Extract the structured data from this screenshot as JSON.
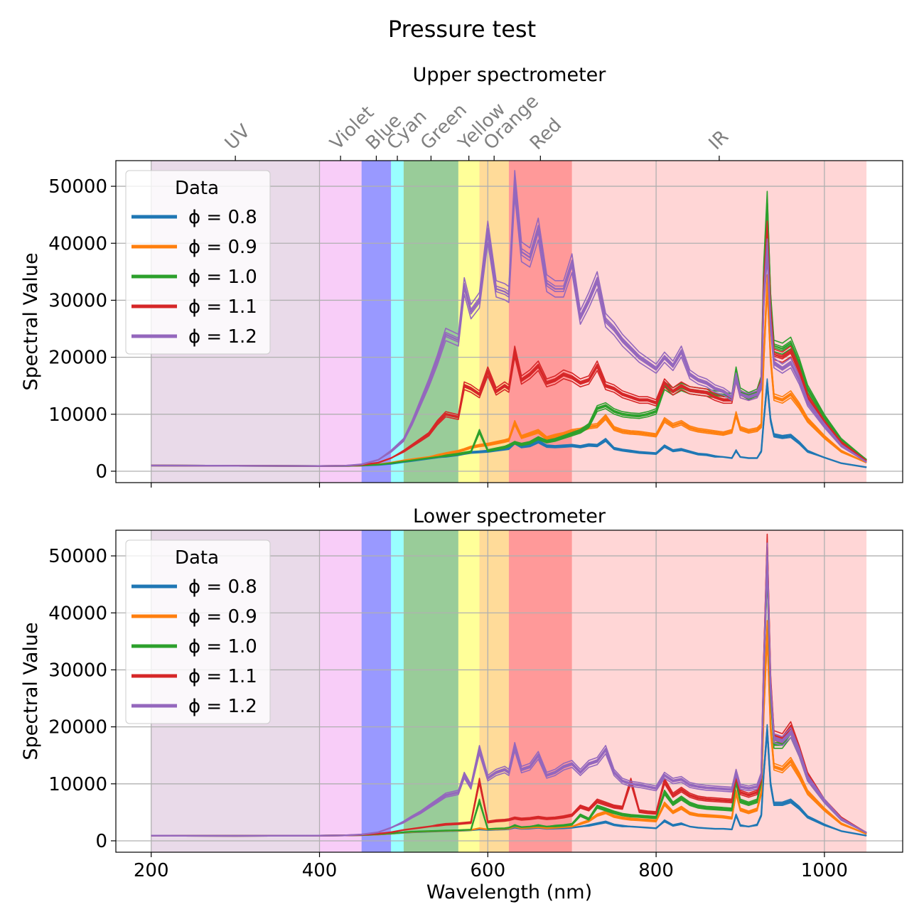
{
  "title": "Pressure test",
  "colors": {
    "series": [
      "#1f77b4",
      "#ff7f0e",
      "#2ca02c",
      "#d62728",
      "#9467bd"
    ],
    "grid": "#b0b0b0",
    "band_label": "#808080"
  },
  "bands": [
    {
      "name": "UV",
      "range": [
        200,
        400
      ],
      "color": "#c8a2c8"
    },
    {
      "name": "Violet",
      "range": [
        400,
        450
      ],
      "color": "#ee82ee"
    },
    {
      "name": "Blue",
      "range": [
        450,
        485
      ],
      "color": "#0000ff"
    },
    {
      "name": "Cyan",
      "range": [
        485,
        500
      ],
      "color": "#00ffff"
    },
    {
      "name": "Green",
      "range": [
        500,
        565
      ],
      "color": "#008000"
    },
    {
      "name": "Yellow",
      "range": [
        565,
        590
      ],
      "color": "#ffff00"
    },
    {
      "name": "Orange",
      "range": [
        590,
        625
      ],
      "color": "#ffa500"
    },
    {
      "name": "Red",
      "range": [
        625,
        700
      ],
      "color": "#ff0000"
    },
    {
      "name": "IR",
      "range": [
        700,
        1050
      ],
      "color": "#ff9999"
    }
  ],
  "chart_data": [
    {
      "type": "line",
      "title": "Upper spectrometer",
      "xlabel": "",
      "ylabel": "Spectral Value",
      "xlim": [
        158,
        1093
      ],
      "ylim": [
        -2000,
        54500
      ],
      "xticks": [
        200,
        400,
        600,
        800,
        1000
      ],
      "yticks": [
        0,
        10000,
        20000,
        30000,
        40000,
        50000
      ],
      "grid": true,
      "legend": {
        "title": "Data",
        "position": "upper-left"
      },
      "x": [
        200,
        300,
        400,
        430,
        450,
        470,
        485,
        500,
        510,
        520,
        530,
        540,
        550,
        565,
        572,
        580,
        590,
        600,
        610,
        620,
        625,
        632,
        640,
        650,
        660,
        670,
        680,
        690,
        700,
        710,
        720,
        730,
        740,
        750,
        760,
        770,
        780,
        790,
        800,
        810,
        820,
        830,
        840,
        850,
        860,
        870,
        880,
        890,
        895,
        900,
        910,
        920,
        925,
        928,
        932,
        936,
        940,
        950,
        960,
        970,
        980,
        1000,
        1020,
        1050
      ],
      "series": [
        {
          "name": "ϕ = 0.8",
          "values": [
            1000,
            950,
            900,
            920,
            980,
            1100,
            1300,
            1600,
            1800,
            2000,
            2200,
            2400,
            2600,
            2900,
            3100,
            3300,
            3400,
            3500,
            3700,
            3900,
            4000,
            5000,
            4300,
            4500,
            5200,
            4400,
            4300,
            4400,
            4500,
            4300,
            4600,
            4500,
            5500,
            4000,
            3700,
            3500,
            3300,
            3200,
            3100,
            4400,
            3600,
            3800,
            3400,
            3000,
            2900,
            2600,
            2500,
            2300,
            3600,
            2500,
            2300,
            2300,
            3500,
            9000,
            15500,
            9000,
            6300,
            6000,
            6200,
            5000,
            3500,
            2400,
            1400,
            700
          ]
        },
        {
          "name": "ϕ = 0.9",
          "values": [
            1000,
            950,
            900,
            930,
            1000,
            1200,
            1500,
            1900,
            2100,
            2300,
            2500,
            2800,
            3100,
            3500,
            3800,
            4200,
            4500,
            4700,
            5000,
            5300,
            5500,
            8500,
            6000,
            6500,
            7000,
            5800,
            6200,
            6500,
            7000,
            7200,
            7800,
            8000,
            9500,
            7500,
            7000,
            6800,
            6700,
            6500,
            6300,
            9000,
            8000,
            8500,
            7600,
            7200,
            7000,
            6800,
            6600,
            7000,
            10000,
            7500,
            7000,
            7300,
            8000,
            20000,
            33000,
            20000,
            13000,
            12500,
            13500,
            11500,
            9000,
            6000,
            3500,
            1500
          ]
        },
        {
          "name": "ϕ = 1.0",
          "values": [
            1000,
            950,
            900,
            930,
            1000,
            1150,
            1400,
            1700,
            1900,
            2100,
            2300,
            2500,
            2700,
            3000,
            3200,
            3400,
            7000,
            3600,
            3900,
            4200,
            4500,
            5000,
            4700,
            5000,
            5800,
            5200,
            5500,
            6000,
            6500,
            7000,
            8000,
            11000,
            11500,
            10500,
            10000,
            9800,
            9700,
            10000,
            10500,
            15000,
            14000,
            14800,
            14200,
            14000,
            13800,
            13500,
            13300,
            13000,
            17500,
            14000,
            13200,
            13800,
            16000,
            35000,
            47000,
            30000,
            22000,
            21500,
            22500,
            19000,
            14500,
            9500,
            5500,
            2000
          ]
        },
        {
          "name": "ϕ = 1.1",
          "values": [
            1000,
            950,
            900,
            950,
            1100,
            1500,
            2300,
            3500,
            4500,
            5500,
            6500,
            8500,
            10000,
            9500,
            15000,
            14500,
            13500,
            17500,
            14000,
            15000,
            14500,
            21000,
            16000,
            17000,
            18500,
            15500,
            16000,
            17000,
            16500,
            15500,
            16000,
            18500,
            15000,
            14500,
            13500,
            13000,
            12500,
            12500,
            12000,
            15500,
            14000,
            15000,
            14200,
            14000,
            13800,
            13000,
            12500,
            12500,
            16500,
            13500,
            13000,
            13500,
            15500,
            32000,
            42000,
            28000,
            20500,
            20000,
            21000,
            17500,
            13000,
            8500,
            5000,
            1800
          ]
        },
        {
          "name": "ϕ = 1.2",
          "values": [
            1000,
            950,
            900,
            950,
            1200,
            2000,
            3500,
            5500,
            8500,
            12000,
            15500,
            19500,
            24000,
            23000,
            32500,
            28000,
            30000,
            42000,
            32000,
            31500,
            31000,
            50500,
            38500,
            37500,
            42500,
            33000,
            32000,
            32000,
            36500,
            27000,
            30000,
            33500,
            26500,
            25000,
            23000,
            21500,
            20000,
            19000,
            18000,
            20000,
            18500,
            21000,
            17000,
            16000,
            15500,
            14500,
            14000,
            13000,
            16500,
            13500,
            13000,
            13500,
            15000,
            30000,
            39000,
            26000,
            19000,
            18000,
            19000,
            16000,
            12000,
            8000,
            4500,
            1600
          ]
        }
      ]
    },
    {
      "type": "line",
      "title": "Lower spectrometer",
      "xlabel": "Wavelength (nm)",
      "ylabel": "Spectral Value",
      "xlim": [
        158,
        1093
      ],
      "ylim": [
        -2000,
        54500
      ],
      "xticks": [
        200,
        400,
        600,
        800,
        1000
      ],
      "yticks": [
        0,
        10000,
        20000,
        30000,
        40000,
        50000
      ],
      "grid": true,
      "legend": {
        "title": "Data",
        "position": "upper-left"
      },
      "x": [
        200,
        300,
        400,
        430,
        450,
        470,
        485,
        500,
        510,
        520,
        530,
        540,
        550,
        565,
        572,
        580,
        590,
        600,
        610,
        620,
        625,
        632,
        640,
        650,
        660,
        670,
        680,
        690,
        700,
        710,
        720,
        730,
        740,
        750,
        760,
        770,
        780,
        790,
        800,
        810,
        820,
        830,
        840,
        850,
        860,
        870,
        880,
        890,
        895,
        900,
        910,
        920,
        925,
        928,
        932,
        936,
        940,
        950,
        960,
        970,
        980,
        1000,
        1020,
        1050
      ],
      "series": [
        {
          "name": "ϕ = 0.8",
          "values": [
            900,
            880,
            900,
            950,
            1000,
            1100,
            1250,
            1400,
            1500,
            1550,
            1600,
            1650,
            1700,
            1750,
            1800,
            1850,
            2000,
            1900,
            1950,
            2000,
            2050,
            2300,
            2100,
            2150,
            2300,
            2100,
            2150,
            2200,
            2300,
            2500,
            2700,
            3000,
            3300,
            2800,
            2600,
            2500,
            2400,
            2300,
            2200,
            3500,
            2700,
            3000,
            2500,
            2300,
            2200,
            2100,
            2100,
            2000,
            4500,
            2700,
            2500,
            2800,
            4500,
            12000,
            19500,
            10000,
            6500,
            6500,
            7000,
            5800,
            4200,
            2800,
            1700,
            900
          ]
        },
        {
          "name": "ϕ = 0.9",
          "values": [
            900,
            880,
            900,
            950,
            1000,
            1100,
            1250,
            1450,
            1550,
            1600,
            1650,
            1700,
            1750,
            1800,
            1850,
            1900,
            2200,
            2000,
            2050,
            2100,
            2150,
            2500,
            2200,
            2300,
            2400,
            2200,
            2300,
            2400,
            2500,
            3000,
            3500,
            4500,
            5000,
            4300,
            4000,
            3800,
            3700,
            3600,
            3500,
            6500,
            5000,
            5800,
            4800,
            4500,
            4400,
            4300,
            4200,
            4000,
            8500,
            5500,
            5000,
            5500,
            8500,
            23000,
            37000,
            20000,
            13000,
            12500,
            14000,
            11500,
            8500,
            5500,
            3000,
            1200
          ]
        },
        {
          "name": "ϕ = 1.0",
          "values": [
            900,
            880,
            900,
            950,
            1000,
            1150,
            1300,
            1500,
            1600,
            1650,
            1700,
            1750,
            1800,
            1850,
            1900,
            1950,
            7000,
            2050,
            2150,
            2200,
            2300,
            2700,
            2400,
            2500,
            2700,
            2500,
            2600,
            2700,
            2900,
            4500,
            3800,
            6000,
            5500,
            5000,
            4600,
            4400,
            4300,
            4200,
            4100,
            8500,
            6500,
            7500,
            6500,
            6000,
            5800,
            5700,
            5600,
            5500,
            10500,
            7000,
            6500,
            7000,
            10500,
            30000,
            48500,
            26000,
            17000,
            17000,
            19000,
            15500,
            11000,
            7000,
            3800,
            1400
          ]
        },
        {
          "name": "ϕ = 1.1",
          "values": [
            900,
            880,
            900,
            950,
            1050,
            1250,
            1500,
            1900,
            2100,
            2300,
            2500,
            2700,
            2900,
            3000,
            3100,
            3200,
            10500,
            3300,
            3500,
            3600,
            3700,
            4000,
            3800,
            3900,
            4100,
            3900,
            4000,
            4200,
            4500,
            6000,
            5500,
            7000,
            6500,
            6000,
            5800,
            10500,
            5200,
            5000,
            4900,
            10500,
            8000,
            9000,
            8000,
            7500,
            7300,
            7200,
            7100,
            7000,
            11500,
            8500,
            8000,
            8500,
            11000,
            31000,
            51500,
            28000,
            18500,
            18000,
            20000,
            16000,
            11500,
            7000,
            4000,
            1400
          ]
        },
        {
          "name": "ϕ = 1.2",
          "values": [
            900,
            880,
            900,
            950,
            1100,
            1500,
            2300,
            3300,
            4200,
            5000,
            6000,
            7000,
            8000,
            8500,
            11500,
            9500,
            16000,
            11000,
            12000,
            12500,
            12000,
            16500,
            12500,
            13000,
            15000,
            11500,
            12000,
            13000,
            13500,
            12000,
            13500,
            14000,
            16000,
            12000,
            10500,
            10000,
            9800,
            9500,
            9200,
            11500,
            10500,
            10800,
            9800,
            9500,
            9300,
            9200,
            9100,
            9000,
            12000,
            9500,
            9200,
            9500,
            11500,
            30000,
            50000,
            27000,
            18000,
            17500,
            19000,
            15500,
            11000,
            7000,
            3800,
            1400
          ]
        }
      ]
    }
  ]
}
